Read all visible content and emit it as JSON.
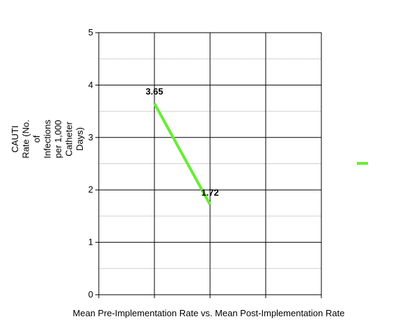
{
  "chart_data": {
    "type": "line",
    "title": "",
    "xlabel": "Mean Pre-Implementation Rate vs. Mean Post-Implementation Rate",
    "ylabel_lines": [
      "CAUTI",
      "Rate (No.",
      "of",
      "Infections",
      "per 1,000",
      "Catheter",
      "Days)"
    ],
    "ylim": [
      0,
      5
    ],
    "yticks": [
      0,
      1,
      2,
      3,
      4,
      5
    ],
    "x_categories": 4,
    "grid": {
      "major": true,
      "minor": true
    },
    "legend": "right",
    "series": [
      {
        "color": "#66ee33",
        "points": [
          {
            "x": 1,
            "y": 3.65,
            "label": "3.65"
          },
          {
            "x": 2,
            "y": 1.72,
            "label": "1.72"
          }
        ]
      }
    ]
  }
}
